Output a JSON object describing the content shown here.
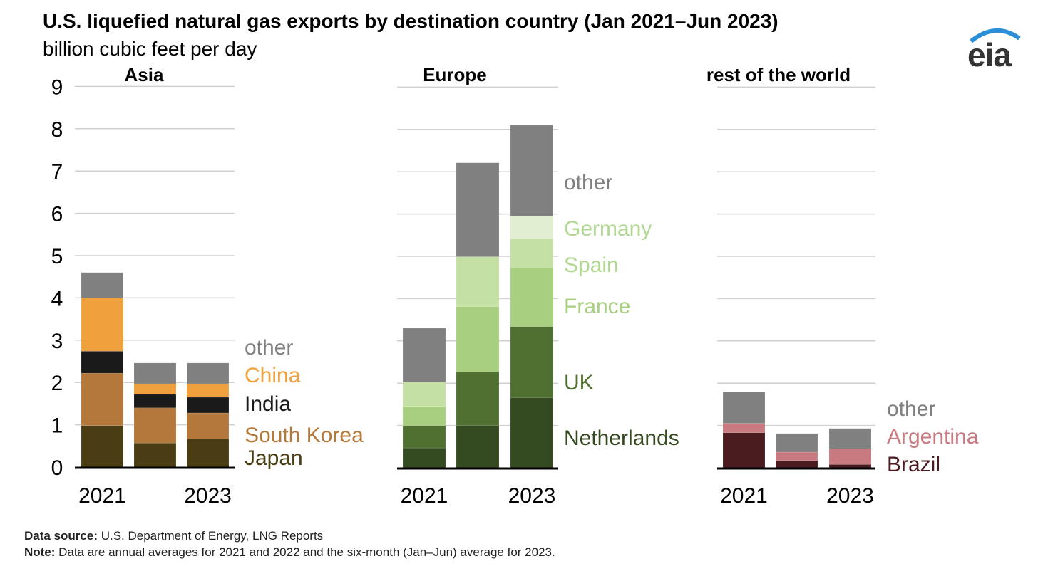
{
  "chart_data": {
    "type": "bar",
    "stacked": true,
    "title": "U.S. liquefied natural gas exports by destination country (Jan 2021–Jun 2023)",
    "ylabel": "billion cubic feet per day",
    "ylim": [
      0,
      9
    ],
    "yticks": [
      "0",
      "1",
      "2",
      "3",
      "4",
      "5",
      "6",
      "7",
      "8",
      "9"
    ],
    "grid": true,
    "categories": [
      "2021",
      "2022",
      "2023"
    ],
    "xtick_labels": [
      "2021",
      "",
      "2023"
    ],
    "panels": [
      {
        "name": "Asia",
        "series": [
          {
            "name": "Japan",
            "color": "#4a3c13",
            "values": [
              0.98,
              0.57,
              0.67
            ]
          },
          {
            "name": "South Korea",
            "color": "#b3783a",
            "values": [
              1.24,
              0.83,
              0.61
            ]
          },
          {
            "name": "India",
            "color": "#1a1a1a",
            "values": [
              0.52,
              0.32,
              0.37
            ]
          },
          {
            "name": "China",
            "color": "#f0a03c",
            "values": [
              1.26,
              0.25,
              0.32
            ]
          },
          {
            "name": "other",
            "color": "#808080",
            "values": [
              0.6,
              0.49,
              0.49
            ]
          }
        ]
      },
      {
        "name": "Europe",
        "series": [
          {
            "name": "Netherlands",
            "color": "#344a20",
            "values": [
              0.47,
              1.0,
              1.66
            ]
          },
          {
            "name": "UK",
            "color": "#4f7030",
            "values": [
              0.52,
              1.26,
              1.68
            ]
          },
          {
            "name": "France",
            "color": "#a8cf80",
            "values": [
              0.46,
              1.55,
              1.4
            ]
          },
          {
            "name": "Spain",
            "color": "#c5e0a5",
            "values": [
              0.58,
              1.18,
              0.67
            ]
          },
          {
            "name": "Germany",
            "color": "#e0eed2",
            "values": [
              0,
              0,
              0.54
            ]
          },
          {
            "name": "other",
            "color": "#808080",
            "values": [
              1.27,
              2.22,
              2.15
            ]
          }
        ]
      },
      {
        "name": "rest of the world",
        "series": [
          {
            "name": "Brazil",
            "color": "#4a1c20",
            "values": [
              0.83,
              0.17,
              0.08
            ]
          },
          {
            "name": "Argentina",
            "color": "#c87a80",
            "values": [
              0.22,
              0.2,
              0.37
            ]
          },
          {
            "name": "other",
            "color": "#808080",
            "values": [
              0.74,
              0.44,
              0.48
            ]
          }
        ]
      }
    ]
  },
  "header": {
    "title": "U.S. liquefied natural gas exports by destination country (Jan 2021–Jun 2023)",
    "subtitle": "billion cubic feet per day",
    "logo": "eia"
  },
  "footer": {
    "source_label": "Data source:",
    "source_text": " U.S. Department of Energy, LNG Reports",
    "note_label": "Note:",
    "note_text": " Data are annual averages for 2021 and 2022 and the six-month (Jan–Jun) average for 2023."
  }
}
